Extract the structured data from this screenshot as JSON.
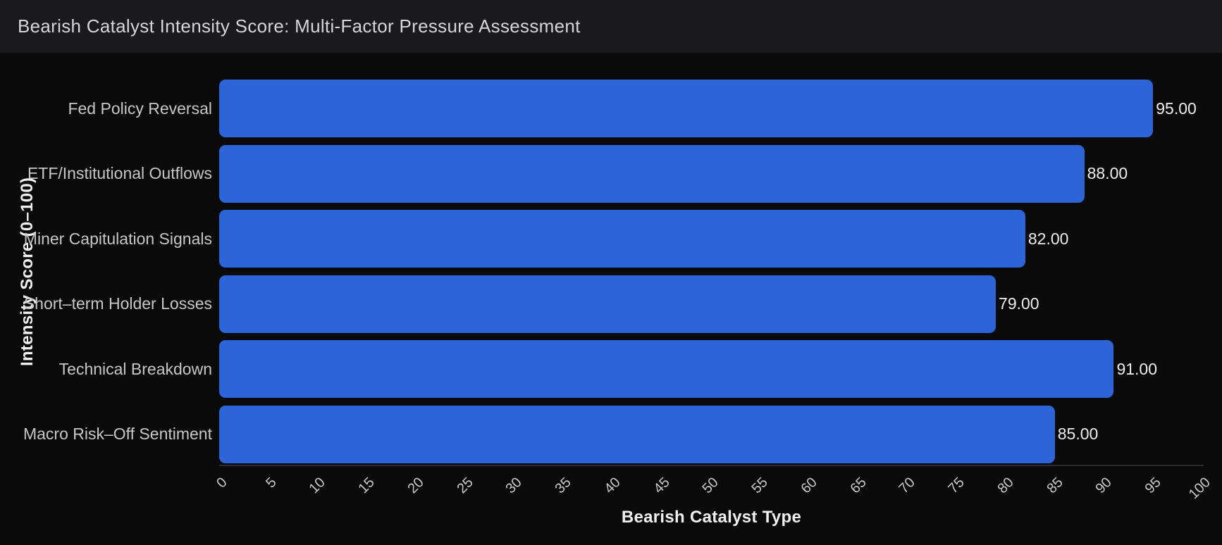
{
  "header": {
    "title": "Bearish Catalyst Intensity Score: Multi-Factor Pressure Assessment"
  },
  "chart_data": {
    "type": "bar",
    "orientation": "horizontal",
    "title": "Bearish Catalyst Intensity Score: Multi-Factor Pressure Assessment",
    "categories": [
      "Fed Policy Reversal",
      "ETF/Institutional Outflows",
      "Miner Capitulation Signals",
      "Short–term Holder Losses",
      "Technical Breakdown",
      "Macro Risk–Off Sentiment"
    ],
    "values": [
      95,
      88,
      82,
      79,
      91,
      85
    ],
    "value_labels": [
      "95.00",
      "88.00",
      "82.00",
      "79.00",
      "91.00",
      "85.00"
    ],
    "xlabel": "Bearish Catalyst Type",
    "ylabel": "Intensity Score (0–100)",
    "xlim": [
      0,
      100
    ],
    "xticks": [
      0,
      5,
      10,
      15,
      20,
      25,
      30,
      35,
      40,
      45,
      50,
      55,
      60,
      65,
      70,
      75,
      80,
      85,
      90,
      95,
      100
    ],
    "grid": false,
    "legend": "none",
    "colors": {
      "bar": "#2d64d8",
      "background": "#0a0a0a",
      "header_background": "#1a1a1c",
      "title_text": "#d6d6d8",
      "category_text": "#c7c7c7",
      "tick_text": "#c9c9c9",
      "value_text": "#ededed",
      "axis_line": "#2c2c2e",
      "axis_title_text": "#f0f0f0"
    }
  }
}
